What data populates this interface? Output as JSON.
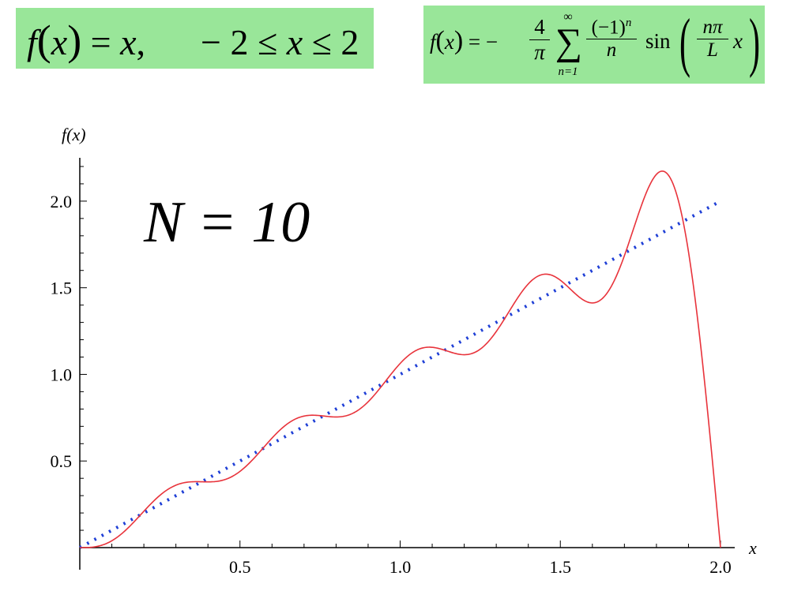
{
  "formulas": {
    "left": {
      "fx": "f",
      "lparen": "(",
      "var": "x",
      "rparen": ")",
      "rhs": " = ",
      "rhs_var": "x",
      "comma": ",",
      "domain_lo": "− 2 ≤ ",
      "domain_var": "x",
      "domain_hi": " ≤ 2"
    },
    "right": {
      "fx": "f",
      "lparen": "(",
      "var": "x",
      "rparen": ")",
      "eq": " = −",
      "coef_num": "4",
      "coef_den": "π",
      "sum_sym": "∑",
      "sum_upper": "∞",
      "sum_lower": "n=1",
      "term_num": "(−1)",
      "term_num_sup": "n",
      "term_den": "n",
      "sin": "sin",
      "arg_num": "nπ",
      "arg_den": "L",
      "arg_var": "x"
    },
    "box_color": "#99e699"
  },
  "annotation": "N = 10",
  "chart_data": {
    "type": "line",
    "xlabel": "x",
    "ylabel": "f(x)",
    "xlim": [
      0,
      2.0
    ],
    "ylim": [
      0,
      2.2
    ],
    "x_ticks": [
      "0.5",
      "1.0",
      "1.5",
      "2.0"
    ],
    "y_ticks": [
      "0.5",
      "1.0",
      "1.5",
      "2.0"
    ],
    "N": 10,
    "L": 2,
    "series": [
      {
        "style": "dotted",
        "color": "#1f3fd6",
        "x": [
          0,
          2.0
        ],
        "y": [
          0,
          2.0
        ]
      },
      {
        "style": "solid",
        "color": "#e8333b",
        "x": [
          0,
          0.1,
          0.2,
          0.3,
          0.35,
          0.4,
          0.45,
          0.5,
          0.6,
          0.7,
          0.75,
          0.8,
          0.9,
          1.0,
          1.1,
          1.15,
          1.2,
          1.3,
          1.4,
          1.45,
          1.5,
          1.6,
          1.7,
          1.75,
          1.8,
          1.85,
          1.9,
          1.95,
          2.0
        ],
        "y": [
          0,
          0.06,
          0.22,
          0.36,
          0.38,
          0.38,
          0.41,
          0.47,
          0.62,
          0.75,
          0.76,
          0.76,
          0.86,
          1.04,
          1.16,
          1.14,
          1.11,
          1.22,
          1.49,
          1.58,
          1.57,
          1.42,
          1.62,
          1.91,
          2.15,
          2.14,
          1.72,
          0.96,
          0.0
        ]
      }
    ],
    "grid": false,
    "legend": "none"
  }
}
